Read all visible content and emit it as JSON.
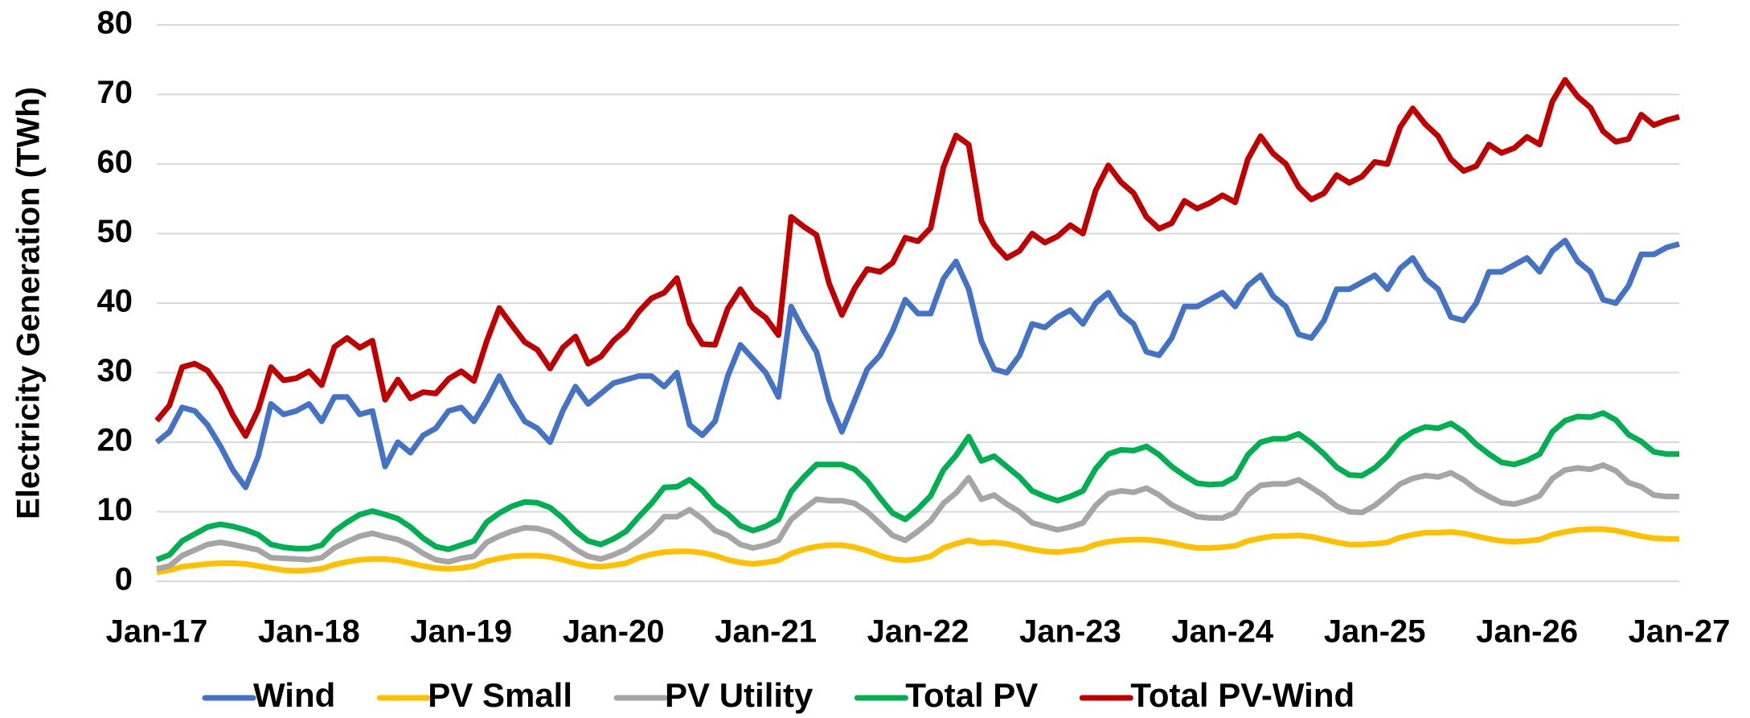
{
  "chart_data": {
    "type": "line",
    "ylabel": "Electricity Generation (TWh)",
    "ylim": [
      0,
      80
    ],
    "yticks": [
      0,
      10,
      20,
      30,
      40,
      50,
      60,
      70,
      80
    ],
    "grid": true,
    "legend": "bottom",
    "categories": [
      "Jan-17",
      null,
      null,
      null,
      null,
      null,
      null,
      null,
      null,
      null,
      null,
      null,
      "Jan-18",
      null,
      null,
      null,
      null,
      null,
      null,
      null,
      null,
      null,
      null,
      null,
      "Jan-19",
      null,
      null,
      null,
      null,
      null,
      null,
      null,
      null,
      null,
      null,
      null,
      "Jan-20",
      null,
      null,
      null,
      null,
      null,
      null,
      null,
      null,
      null,
      null,
      null,
      "Jan-21",
      null,
      null,
      null,
      null,
      null,
      null,
      null,
      null,
      null,
      null,
      null,
      "Jan-22",
      null,
      null,
      null,
      null,
      null,
      null,
      null,
      null,
      null,
      null,
      null,
      "Jan-23",
      null,
      null,
      null,
      null,
      null,
      null,
      null,
      null,
      null,
      null,
      null,
      "Jan-24",
      null,
      null,
      null,
      null,
      null,
      null,
      null,
      null,
      null,
      null,
      null,
      "Jan-25",
      null,
      null,
      null,
      null,
      null,
      null,
      null,
      null,
      null,
      null,
      null,
      "Jan-26",
      null,
      null,
      null,
      null,
      null,
      null,
      null,
      null,
      null,
      null,
      null,
      "Jan-27"
    ],
    "series": [
      {
        "name": "Wind",
        "color": "#4472c4",
        "values": [
          20,
          21.5,
          25,
          24.5,
          22.5,
          19.5,
          16,
          13.5,
          18,
          25.5,
          24,
          24.5,
          25.5,
          23,
          26.5,
          26.5,
          24,
          24.5,
          16.5,
          20,
          18.5,
          21,
          22,
          24.5,
          25,
          23,
          26,
          29.5,
          26,
          23,
          22,
          20,
          24.5,
          28,
          25.5,
          27,
          28.5,
          29,
          29.5,
          29.5,
          28,
          30,
          22.5,
          21,
          23,
          29.5,
          34,
          32,
          30,
          26.5,
          39.5,
          36,
          33,
          26,
          21.5,
          26,
          30.5,
          32.5,
          36,
          40.5,
          38.5,
          38.5,
          43.5,
          46,
          42,
          34.5,
          30.5,
          30,
          32.5,
          37,
          36.5,
          38,
          39,
          37,
          40,
          41.5,
          38.5,
          37,
          33,
          32.5,
          35,
          39.5,
          39.5,
          40.5,
          41.5,
          39.5,
          42.5,
          44,
          41,
          39.5,
          35.5,
          35,
          37.5,
          42,
          42,
          43,
          44,
          42,
          45,
          46.5,
          43.5,
          42,
          38,
          37.5,
          40,
          44.5,
          44.5,
          45.5,
          46.5,
          44.5,
          47.5,
          49,
          46,
          44.5,
          40.5,
          40,
          42.5,
          47,
          47,
          48,
          48.5
        ]
      },
      {
        "name": "PV Small",
        "color": "#ffc000",
        "values": [
          1.3,
          1.6,
          2.1,
          2.3,
          2.5,
          2.6,
          2.6,
          2.5,
          2.2,
          1.9,
          1.6,
          1.5,
          1.6,
          1.8,
          2.4,
          2.8,
          3.1,
          3.2,
          3.2,
          3.0,
          2.6,
          2.2,
          1.9,
          1.8,
          1.9,
          2.2,
          2.9,
          3.3,
          3.6,
          3.7,
          3.7,
          3.5,
          3.1,
          2.6,
          2.2,
          2.1,
          2.3,
          2.6,
          3.4,
          3.9,
          4.2,
          4.3,
          4.3,
          4.1,
          3.7,
          3.1,
          2.7,
          2.5,
          2.7,
          3.0,
          4.0,
          4.6,
          5.0,
          5.2,
          5.2,
          4.9,
          4.4,
          3.7,
          3.2,
          3.0,
          3.2,
          3.6,
          4.8,
          5.4,
          5.9,
          5.5,
          5.6,
          5.4,
          5.0,
          4.6,
          4.3,
          4.2,
          4.4,
          4.6,
          5.3,
          5.7,
          5.9,
          6.0,
          6.0,
          5.8,
          5.5,
          5.1,
          4.8,
          4.8,
          4.9,
          5.1,
          5.8,
          6.2,
          6.5,
          6.5,
          6.6,
          6.4,
          6.0,
          5.6,
          5.3,
          5.3,
          5.4,
          5.6,
          6.3,
          6.7,
          7.0,
          7.0,
          7.1,
          6.9,
          6.5,
          6.1,
          5.8,
          5.7,
          5.8,
          6.0,
          6.7,
          7.1,
          7.4,
          7.5,
          7.5,
          7.3,
          6.9,
          6.5,
          6.2,
          6.1,
          6.1
        ]
      },
      {
        "name": "PV Utility",
        "color": "#a5a5a5",
        "values": [
          1.8,
          2.2,
          3.7,
          4.5,
          5.3,
          5.6,
          5.3,
          4.9,
          4.5,
          3.4,
          3.3,
          3.2,
          3.1,
          3.4,
          4.8,
          5.7,
          6.5,
          6.9,
          6.4,
          6.0,
          5.2,
          4.0,
          3.1,
          2.8,
          3.3,
          3.6,
          5.6,
          6.5,
          7.2,
          7.7,
          7.6,
          7.1,
          6.0,
          4.6,
          3.6,
          3.2,
          3.8,
          4.6,
          5.9,
          7.3,
          9.3,
          9.3,
          10.3,
          9.0,
          7.3,
          6.6,
          5.3,
          4.8,
          5.2,
          5.9,
          8.9,
          10.4,
          11.8,
          11.6,
          11.6,
          11.2,
          10.0,
          8.3,
          6.6,
          5.9,
          7.2,
          8.7,
          11.2,
          12.7,
          14.9,
          11.8,
          12.4,
          11.1,
          10.0,
          8.4,
          7.9,
          7.4,
          7.8,
          8.4,
          10.9,
          12.6,
          13.0,
          12.8,
          13.4,
          12.4,
          11.0,
          10.1,
          9.3,
          9.1,
          9.1,
          9.9,
          12.4,
          13.8,
          14.0,
          14.0,
          14.6,
          13.5,
          12.3,
          10.8,
          10.0,
          9.9,
          10.9,
          12.4,
          14.0,
          14.8,
          15.2,
          15.0,
          15.6,
          14.6,
          13.2,
          12.2,
          11.3,
          11.1,
          11.6,
          12.3,
          14.8,
          16.0,
          16.3,
          16.1,
          16.7,
          15.9,
          14.2,
          13.6,
          12.4,
          12.2,
          12.2
        ]
      },
      {
        "name": "Total PV",
        "color": "#00b050",
        "values": [
          3.1,
          3.8,
          5.8,
          6.8,
          7.8,
          8.2,
          7.9,
          7.4,
          6.7,
          5.3,
          4.9,
          4.7,
          4.7,
          5.2,
          7.2,
          8.5,
          9.6,
          10.1,
          9.6,
          9.0,
          7.8,
          6.2,
          5.0,
          4.6,
          5.2,
          5.8,
          8.5,
          9.8,
          10.8,
          11.4,
          11.3,
          10.6,
          9.1,
          7.2,
          5.8,
          5.3,
          6.1,
          7.2,
          9.3,
          11.2,
          13.5,
          13.6,
          14.6,
          13.1,
          11.0,
          9.7,
          8.0,
          7.3,
          7.9,
          8.9,
          12.9,
          15.0,
          16.8,
          16.8,
          16.8,
          16.1,
          14.4,
          12.0,
          9.8,
          8.9,
          10.4,
          12.3,
          16.0,
          18.1,
          20.8,
          17.3,
          18.0,
          16.5,
          15.0,
          13.0,
          12.2,
          11.6,
          12.2,
          13.0,
          16.2,
          18.3,
          18.9,
          18.8,
          19.4,
          18.2,
          16.5,
          15.2,
          14.1,
          13.9,
          14.0,
          15.0,
          18.2,
          20.0,
          20.5,
          20.5,
          21.2,
          19.9,
          18.3,
          16.4,
          15.3,
          15.2,
          16.3,
          18.0,
          20.3,
          21.5,
          22.2,
          22.0,
          22.7,
          21.5,
          19.7,
          18.3,
          17.1,
          16.8,
          17.4,
          18.3,
          21.5,
          23.1,
          23.7,
          23.6,
          24.2,
          23.2,
          21.1,
          20.1,
          18.6,
          18.3,
          18.3
        ]
      },
      {
        "name": "Total PV-Wind",
        "color": "#c00000",
        "values": [
          23.1,
          25.3,
          30.8,
          31.3,
          30.3,
          27.7,
          23.9,
          20.9,
          24.7,
          30.8,
          28.9,
          29.2,
          30.2,
          28.2,
          33.7,
          35.0,
          33.6,
          34.6,
          26.1,
          29.0,
          26.3,
          27.2,
          27.0,
          29.1,
          30.2,
          28.8,
          34.5,
          39.3,
          36.8,
          34.4,
          33.3,
          30.6,
          33.6,
          35.2,
          31.3,
          32.3,
          34.6,
          36.2,
          38.8,
          40.7,
          41.5,
          43.6,
          37.1,
          34.1,
          34.0,
          39.2,
          42.0,
          39.3,
          37.9,
          35.4,
          52.4,
          51.0,
          49.8,
          42.8,
          38.3,
          42.1,
          44.9,
          44.5,
          45.8,
          49.4,
          48.9,
          50.8,
          59.5,
          64.1,
          62.8,
          51.8,
          48.5,
          46.5,
          47.5,
          50.0,
          48.7,
          49.6,
          51.2,
          50.0,
          56.2,
          59.8,
          57.4,
          55.8,
          52.4,
          50.7,
          51.5,
          54.7,
          53.6,
          54.4,
          55.5,
          54.5,
          60.7,
          64.0,
          61.5,
          60.0,
          56.7,
          54.9,
          55.8,
          58.4,
          57.3,
          58.2,
          60.3,
          60.0,
          65.3,
          68.0,
          65.7,
          64.0,
          60.7,
          59.0,
          59.7,
          62.8,
          61.6,
          62.3,
          63.9,
          62.8,
          69.0,
          72.1,
          69.7,
          68.1,
          64.7,
          63.2,
          63.6,
          67.1,
          65.6,
          66.3,
          66.8
        ]
      }
    ]
  }
}
